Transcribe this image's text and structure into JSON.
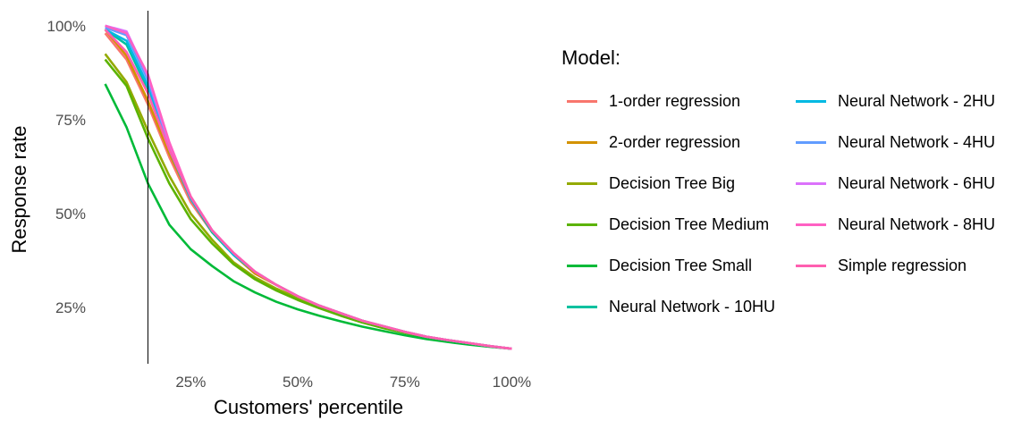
{
  "chart_data": {
    "type": "line",
    "title": "",
    "xlabel": "Customers' percentile",
    "ylabel": "Response rate",
    "xlim": [
      0.03,
      1.02
    ],
    "ylim": [
      0.1,
      1.04
    ],
    "x_ticks": [
      0.25,
      0.5,
      0.75,
      1.0
    ],
    "x_tick_labels": [
      "25%",
      "50%",
      "75%",
      "100%"
    ],
    "y_ticks": [
      0.25,
      0.5,
      0.75,
      1.0
    ],
    "y_tick_labels": [
      "25%",
      "50%",
      "75%",
      "100%"
    ],
    "grid": false,
    "vline_x": 0.15,
    "legend_title": "Model:",
    "legend_position": "right",
    "x": [
      0.05,
      0.1,
      0.15,
      0.2,
      0.25,
      0.3,
      0.35,
      0.4,
      0.45,
      0.5,
      0.55,
      0.6,
      0.65,
      0.7,
      0.75,
      0.8,
      0.85,
      0.9,
      0.95,
      1.0
    ],
    "series": [
      {
        "name": "1-order regression",
        "color": "#F8766D",
        "values": [
          0.98,
          0.91,
          0.79,
          0.65,
          0.53,
          0.45,
          0.39,
          0.34,
          0.31,
          0.28,
          0.255,
          0.235,
          0.215,
          0.2,
          0.185,
          0.172,
          0.163,
          0.155,
          0.147,
          0.14
        ]
      },
      {
        "name": "2-order regression",
        "color": "#D39200",
        "values": [
          0.99,
          0.92,
          0.8,
          0.66,
          0.54,
          0.45,
          0.39,
          0.34,
          0.31,
          0.28,
          0.255,
          0.235,
          0.215,
          0.2,
          0.185,
          0.172,
          0.163,
          0.155,
          0.147,
          0.14
        ]
      },
      {
        "name": "Decision Tree Big",
        "color": "#93AA00",
        "values": [
          0.925,
          0.85,
          0.72,
          0.6,
          0.5,
          0.43,
          0.37,
          0.33,
          0.3,
          0.275,
          0.25,
          0.23,
          0.212,
          0.197,
          0.183,
          0.171,
          0.162,
          0.154,
          0.147,
          0.14
        ]
      },
      {
        "name": "Decision Tree Medium",
        "color": "#5BB300",
        "values": [
          0.91,
          0.84,
          0.7,
          0.58,
          0.485,
          0.42,
          0.365,
          0.325,
          0.295,
          0.27,
          0.248,
          0.228,
          0.21,
          0.195,
          0.182,
          0.17,
          0.161,
          0.153,
          0.146,
          0.14
        ]
      },
      {
        "name": "Decision Tree Small",
        "color": "#00BA38",
        "values": [
          0.845,
          0.73,
          0.58,
          0.47,
          0.405,
          0.36,
          0.32,
          0.29,
          0.265,
          0.245,
          0.228,
          0.213,
          0.199,
          0.187,
          0.176,
          0.166,
          0.158,
          0.151,
          0.145,
          0.14
        ]
      },
      {
        "name": "Neural Network - 10HU",
        "color": "#00C19F",
        "values": [
          0.99,
          0.95,
          0.83,
          0.67,
          0.54,
          0.45,
          0.39,
          0.345,
          0.31,
          0.28,
          0.255,
          0.235,
          0.215,
          0.2,
          0.185,
          0.172,
          0.163,
          0.155,
          0.147,
          0.14
        ]
      },
      {
        "name": "Neural Network - 2HU",
        "color": "#00B9E3",
        "values": [
          0.99,
          0.96,
          0.84,
          0.67,
          0.54,
          0.455,
          0.39,
          0.345,
          0.31,
          0.28,
          0.255,
          0.235,
          0.215,
          0.2,
          0.185,
          0.172,
          0.163,
          0.155,
          0.147,
          0.14
        ]
      },
      {
        "name": "Neural Network - 4HU",
        "color": "#619CFF",
        "values": [
          0.995,
          0.975,
          0.855,
          0.68,
          0.545,
          0.455,
          0.395,
          0.345,
          0.31,
          0.28,
          0.255,
          0.235,
          0.215,
          0.2,
          0.185,
          0.172,
          0.163,
          0.155,
          0.147,
          0.14
        ]
      },
      {
        "name": "Neural Network - 6HU",
        "color": "#DB72FB",
        "values": [
          1.0,
          0.985,
          0.865,
          0.685,
          0.545,
          0.455,
          0.395,
          0.345,
          0.31,
          0.28,
          0.255,
          0.235,
          0.215,
          0.2,
          0.185,
          0.172,
          0.163,
          0.155,
          0.147,
          0.14
        ]
      },
      {
        "name": "Neural Network - 8HU",
        "color": "#FF61C3",
        "values": [
          1.0,
          0.98,
          0.87,
          0.69,
          0.545,
          0.455,
          0.395,
          0.345,
          0.31,
          0.28,
          0.255,
          0.235,
          0.215,
          0.2,
          0.185,
          0.172,
          0.163,
          0.155,
          0.147,
          0.14
        ]
      },
      {
        "name": "Simple regression",
        "color": "#FF5FB0",
        "values": [
          0.99,
          0.93,
          0.82,
          0.67,
          0.545,
          0.455,
          0.395,
          0.345,
          0.31,
          0.28,
          0.255,
          0.235,
          0.215,
          0.2,
          0.185,
          0.172,
          0.163,
          0.155,
          0.147,
          0.14
        ]
      }
    ]
  }
}
